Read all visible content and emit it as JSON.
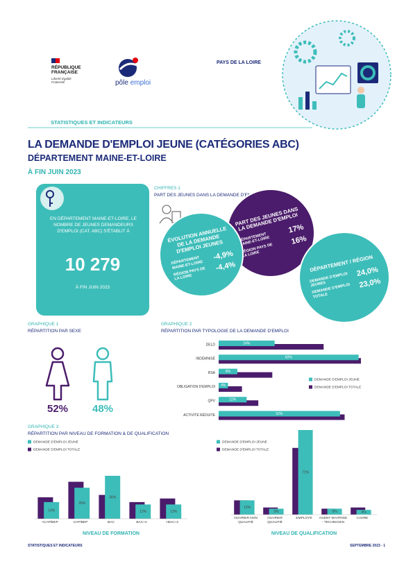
{
  "header": {
    "republic": "RÉPUBLIQUE FRANÇAISE",
    "motto": "Liberté Égalité Fraternité",
    "brand": [
      "pôle",
      "emploi"
    ],
    "region": "PAYS DE LA LOIRE",
    "section": "STATISTIQUES ET INDICATEURS",
    "title": "LA DEMANDE D'EMPLOI JEUNE (CATÉGORIES ABC)",
    "subtitle": "DÉPARTEMENT MAINE-ET-LOIRE",
    "date": "À FIN JUIN 2023"
  },
  "key_figure": {
    "text": "EN DÉPARTEMENT MAINE-ET-LOIRE, LE NOMBRE DE JEUNES DEMANDEURS D'EMPLOI (CAT. ABC) S'ÉTABLIT À",
    "value": "10 279",
    "date": "À FIN JUIN 2023"
  },
  "chiffres": {
    "label": "CHIFFRES 1",
    "title": "PART DES JEUNES DANS LA DEMANDE D'EMPLOI",
    "circles": [
      {
        "title": "ÉVOLUTION ANNUELLE DE LA DEMANDE D'EMPLOI JEUNES",
        "rows": [
          {
            "label": "DÉPARTEMENT MAINE-ET-LOIRE",
            "value": "-4,9%"
          },
          {
            "label": "RÉGION PAYS DE LA LOIRE",
            "value": "-4,4%"
          }
        ]
      },
      {
        "title": "PART DES JEUNES DANS LA DEMANDE D'EMPLOI",
        "rows": [
          {
            "label": "DÉPARTEMENT MAINE-ET-LOIRE",
            "value": "17%"
          },
          {
            "label": "RÉGION PAYS DE LA LOIRE",
            "value": "16%"
          }
        ]
      },
      {
        "title": "DÉPARTEMENT / RÉGION",
        "rows": [
          {
            "label": "DEMANDE D'EMPLOI JEUNES",
            "value": "24,0%"
          },
          {
            "label": "DEMANDE D'EMPLOI TOTALE",
            "value": "23,0%"
          }
        ]
      }
    ]
  },
  "chart_data": [
    {
      "type": "icon",
      "label": "GRAPHIQUE 1",
      "title": "RÉPARTITION PAR SEXE",
      "categories": [
        null,
        null
      ],
      "values": [
        52,
        48
      ],
      "value_labels": [
        "52%",
        "48%"
      ],
      "colors": [
        "#4b1c6b",
        "#3dbdb9"
      ]
    },
    {
      "type": "hbar",
      "label": "GRAPHIQUE 2",
      "title": "RÉPARTITION PAR TYPOLOGIE DE LA DEMANDE D'EMPLOI",
      "categories": [
        "DELD",
        "INDEMNISÉ",
        "RSA",
        "OBLIGATION D'EMPLOI",
        "QPV",
        "ACTIVITÉ RÉDUITE"
      ],
      "series": [
        {
          "name": "DEMANDE D'EMPLOI JEUNE",
          "color": "#3dbdb9",
          "values": [
            24,
            60,
            8,
            4,
            12,
            52
          ],
          "value_labels": [
            "24%",
            "60%",
            "8%",
            "4%",
            "12%",
            "52%"
          ]
        },
        {
          "name": "DEMANDE D'EMPLOI TOTALE",
          "color": "#4b1c6b",
          "values": [
            45,
            61,
            23,
            10,
            17,
            54
          ]
        }
      ]
    },
    {
      "type": "bar",
      "label": "GRAPHIQUE 3",
      "title": "RÉPARTITION PAR NIVEAU DE FORMATION & DE QUALIFICATION",
      "x_label": "NIVEAU DE FORMATION",
      "categories": [
        "<CAP/BEP",
        "CAP/BEP",
        "BAC",
        "BAC+2",
        ">BAC+2"
      ],
      "series": [
        {
          "name": "DEMANDE D'EMPLOI JEUNE",
          "color": "#3dbdb9",
          "values": [
            14,
            26,
            36,
            12,
            12
          ],
          "value_labels": [
            "14%",
            "26%",
            "36%",
            "12%",
            "12%"
          ]
        },
        {
          "name": "DEMANDE D'EMPLOI TOTALE",
          "color": "#4b1c6b",
          "values": [
            18,
            31,
            20,
            14,
            17
          ]
        }
      ]
    },
    {
      "type": "bar",
      "x_label": "NIVEAU DE QUALIFICATION",
      "categories": [
        "OUVRIER NON QUALIFIÉ",
        "OUVRIER QUALIFIÉ",
        "EMPLOYÉ",
        "AGENT MAITRISE - TECHNICIEN",
        "CADRE"
      ],
      "series": [
        {
          "name": "DEMANDE D'EMPLOI JEUNE",
          "color": "#3dbdb9",
          "values": [
            12,
            5,
            71,
            5,
            4
          ],
          "value_labels": [
            "12%",
            "5%",
            "71%",
            "5%",
            "4%"
          ]
        },
        {
          "name": "DEMANDE D'EMPLOI TOTALE",
          "color": "#4b1c6b",
          "values": [
            12,
            6,
            56,
            5,
            6
          ]
        }
      ]
    }
  ],
  "footer": {
    "left": "STATISTIQUES ET INDICATEURS",
    "right": "SEPTEMBRE 2023 - 1"
  }
}
